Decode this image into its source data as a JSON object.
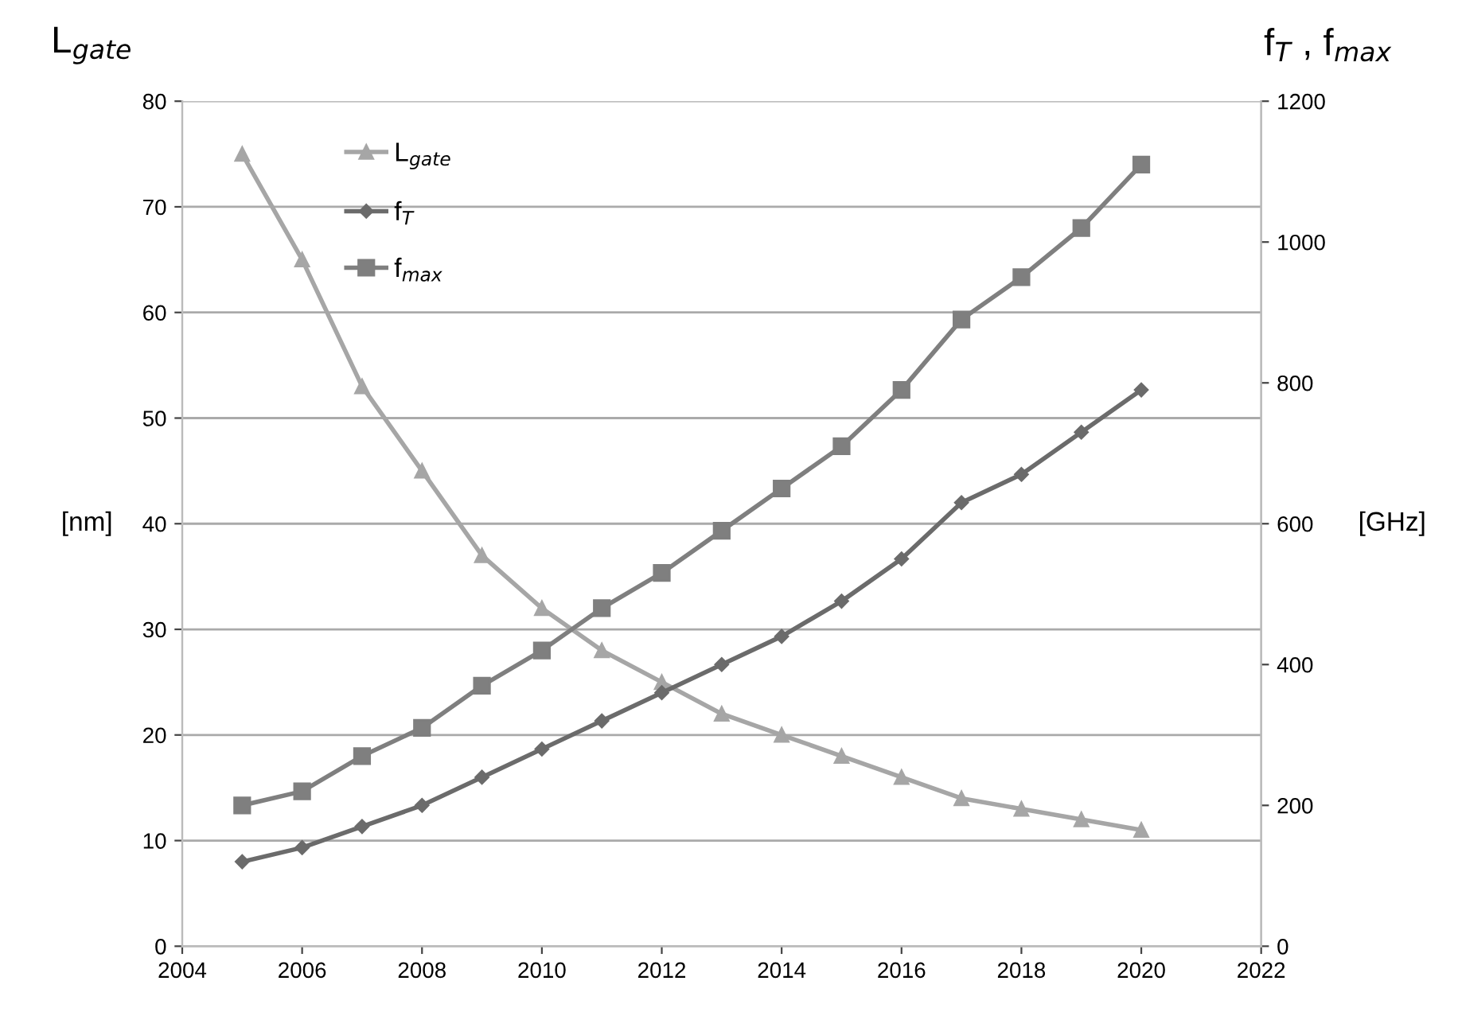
{
  "chart_data": {
    "type": "line",
    "x": [
      2005,
      2006,
      2007,
      2008,
      2009,
      2010,
      2011,
      2012,
      2013,
      2014,
      2015,
      2016,
      2017,
      2018,
      2019,
      2020
    ],
    "series": [
      {
        "name": "L$_{gate}$",
        "color": "#a6a6a6",
        "marker": "triangle",
        "values": [
          75,
          65,
          53,
          45,
          37,
          32,
          28,
          25,
          22,
          20,
          18,
          16,
          14,
          13,
          12,
          11
        ]
      },
      {
        "name": "f$_{T}$",
        "color": "#6b6b6b",
        "marker": "diamond",
        "axis": "y2",
        "values": [
          120,
          140,
          170,
          200,
          240,
          280,
          320,
          360,
          400,
          440,
          490,
          550,
          630,
          670,
          730,
          790
        ]
      },
      {
        "name": "f$_{max}$",
        "color": "#7f7f7f",
        "marker": "square",
        "axis": "y2",
        "values": [
          200,
          220,
          270,
          310,
          370,
          420,
          480,
          530,
          590,
          650,
          710,
          790,
          890,
          950,
          1020,
          1110
        ]
      }
    ],
    "ylabel": "[nm]",
    "y2label": "[GHz]",
    "annotations": [
      "L$_{gate}$",
      "f$_{T}$ , f$_{max}$"
    ],
    "xlim": [
      2004,
      2022
    ],
    "xticks": [
      2004,
      2006,
      2008,
      2010,
      2012,
      2014,
      2016,
      2018,
      2020,
      2022
    ],
    "ylim": [
      0,
      80
    ],
    "yticks": [
      0,
      10,
      20,
      30,
      40,
      50,
      60,
      70,
      80
    ],
    "y2lim": [
      0,
      1200
    ],
    "y2ticks": [
      0,
      200,
      400,
      600,
      800,
      1000,
      1200
    ],
    "grid": "y",
    "legend": "top left",
    "line_style": "solid"
  }
}
